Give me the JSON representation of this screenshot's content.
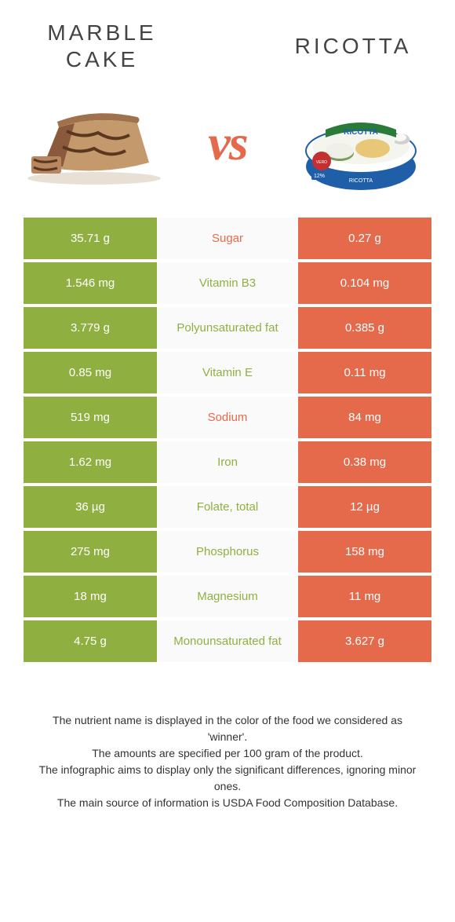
{
  "colors": {
    "left_bg": "#8fb040",
    "right_bg": "#e56a4b",
    "left_text": "#8fb040",
    "right_text": "#e56a4b",
    "vs_color": "#e56a4b"
  },
  "left": {
    "title": "Marble cake"
  },
  "right": {
    "title": "Ricotta"
  },
  "vs_label": "vs",
  "rows": [
    {
      "left": "35.71 g",
      "label": "Sugar",
      "right": "0.27 g",
      "winner": "right"
    },
    {
      "left": "1.546 mg",
      "label": "Vitamin B3",
      "right": "0.104 mg",
      "winner": "left"
    },
    {
      "left": "3.779 g",
      "label": "Polyunsaturated fat",
      "right": "0.385 g",
      "winner": "left"
    },
    {
      "left": "0.85 mg",
      "label": "Vitamin E",
      "right": "0.11 mg",
      "winner": "left"
    },
    {
      "left": "519 mg",
      "label": "Sodium",
      "right": "84 mg",
      "winner": "right"
    },
    {
      "left": "1.62 mg",
      "label": "Iron",
      "right": "0.38 mg",
      "winner": "left"
    },
    {
      "left": "36 µg",
      "label": "Folate, total",
      "right": "12 µg",
      "winner": "left"
    },
    {
      "left": "275 mg",
      "label": "Phosphorus",
      "right": "158 mg",
      "winner": "left"
    },
    {
      "left": "18 mg",
      "label": "Magnesium",
      "right": "11 mg",
      "winner": "left"
    },
    {
      "left": "4.75 g",
      "label": "Monounsaturated fat",
      "right": "3.627 g",
      "winner": "left"
    }
  ],
  "footer": {
    "line1": "The nutrient name is displayed in the color of the food we considered as 'winner'.",
    "line2": "The amounts are specified per 100 gram of the product.",
    "line3": "The infographic aims to display only the significant differences, ignoring minor ones.",
    "line4": "The main source of information is USDA Food Composition Database."
  }
}
